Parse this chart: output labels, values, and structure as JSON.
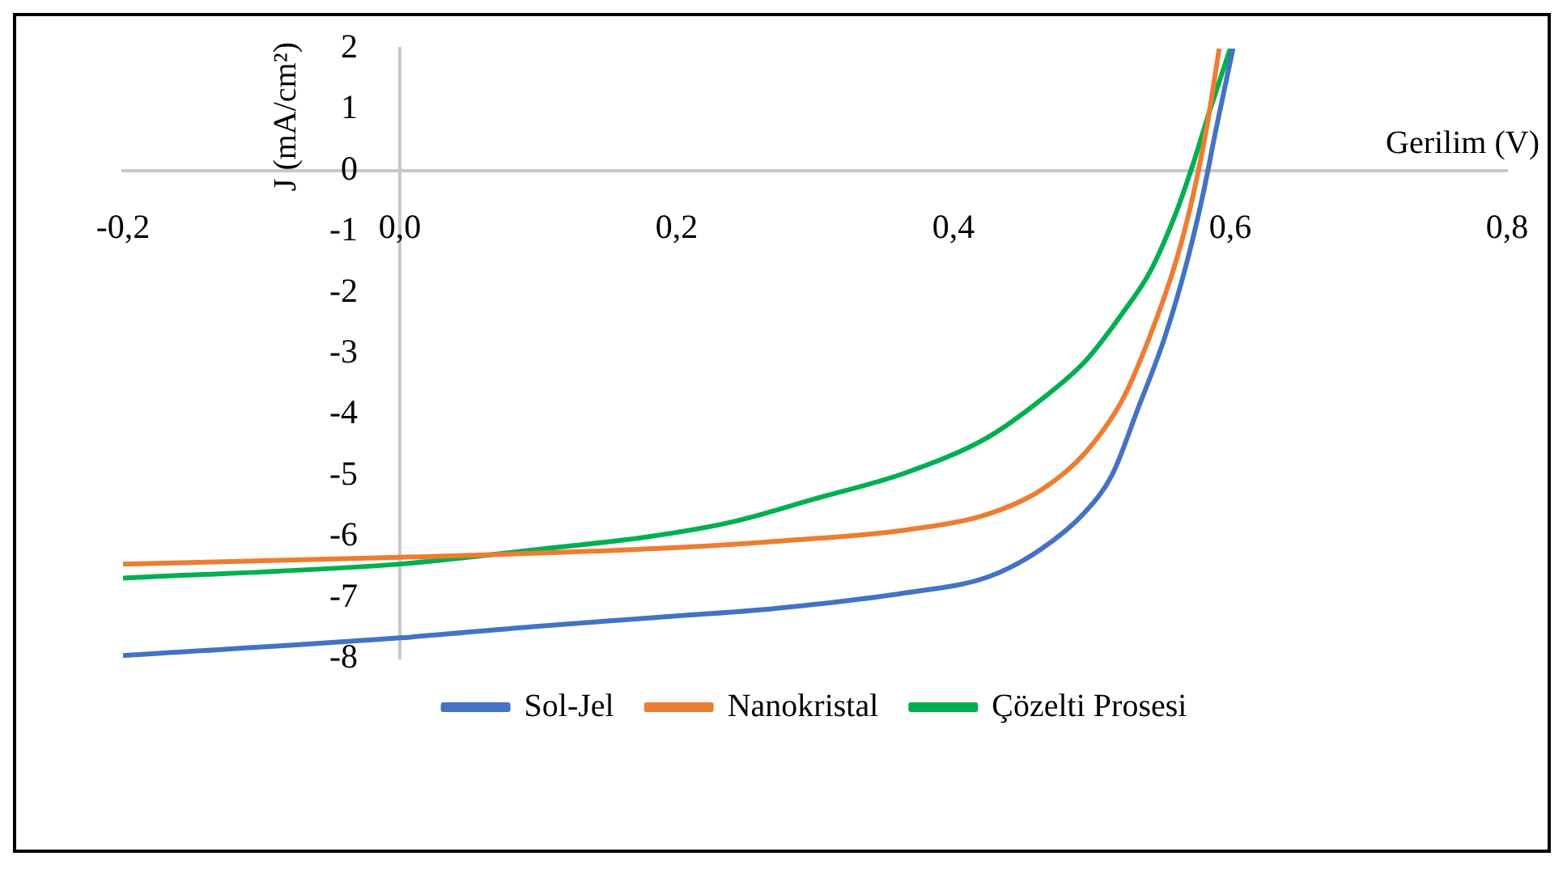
{
  "chart_data": {
    "type": "line",
    "xlabel": "Gerilim (V)",
    "ylabel": "J (mA/cm²)",
    "xlim": [
      -0.2,
      0.8
    ],
    "ylim": [
      -8,
      2
    ],
    "xticks": [
      {
        "value": -0.2,
        "label": "-0,2"
      },
      {
        "value": 0,
        "label": "0,0"
      },
      {
        "value": 0.2,
        "label": "0,2"
      },
      {
        "value": 0.4,
        "label": "0,4"
      },
      {
        "value": 0.6,
        "label": "0,6"
      },
      {
        "value": 0.8,
        "label": "0,8"
      }
    ],
    "yticks": [
      -8,
      -7,
      -6,
      -5,
      -4,
      -3,
      -2,
      -1,
      0,
      1,
      2
    ],
    "grid": false,
    "legend": "bottom",
    "marker": "none",
    "line_style": "solid",
    "series": [
      {
        "name": "Sol-Jel",
        "color": "#4472c4",
        "x": [
          -0.2,
          0,
          0.1,
          0.2,
          0.27,
          0.366,
          0.425,
          0.463,
          0.495,
          0.515,
          0.533,
          0.553,
          0.569,
          0.58,
          0.59,
          0.602
        ],
        "values": [
          -7.95,
          -7.66,
          -7.47,
          -7.3,
          -7.18,
          -6.92,
          -6.66,
          -6.21,
          -5.6,
          -4.97,
          -3.92,
          -2.71,
          -1.47,
          -0.42,
          0.71,
          2
        ]
      },
      {
        "name": "Nanokristal",
        "color": "#ed7d31",
        "x": [
          -0.2,
          0,
          0.2,
          0.27,
          0.366,
          0.425,
          0.463,
          0.495,
          0.522,
          0.542,
          0.561,
          0.573,
          0.583,
          0.592
        ],
        "values": [
          -6.45,
          -6.34,
          -6.18,
          -6.08,
          -5.89,
          -5.63,
          -5.24,
          -4.63,
          -3.76,
          -2.71,
          -1.47,
          -0.42,
          0.71,
          2
        ]
      },
      {
        "name": "Çözelti Prosesi",
        "color": "#00b050",
        "x": [
          -0.2,
          0,
          0.1,
          0.18,
          0.24,
          0.3,
          0.366,
          0.425,
          0.463,
          0.495,
          0.522,
          0.542,
          0.561,
          0.573,
          0.585,
          0.6
        ],
        "values": [
          -6.68,
          -6.45,
          -6.21,
          -6.0,
          -5.76,
          -5.38,
          -4.95,
          -4.37,
          -3.76,
          -3.13,
          -2.34,
          -1.66,
          -0.68,
          0.1,
          0.97,
          2
        ]
      }
    ]
  }
}
